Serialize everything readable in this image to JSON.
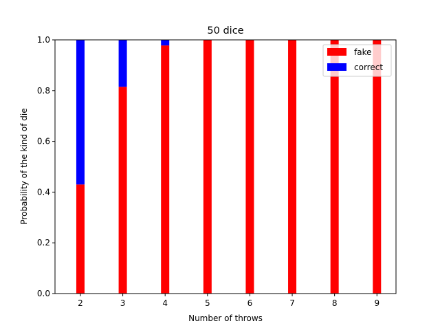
{
  "chart_data": {
    "type": "bar",
    "stacked": true,
    "title": "50 dice",
    "xlabel": "Number of throws",
    "ylabel": "Probability of the kind of die",
    "categories": [
      2,
      3,
      4,
      5,
      6,
      7,
      8,
      9
    ],
    "series": [
      {
        "name": "fake",
        "color": "#ff0000",
        "values": [
          0.43,
          0.815,
          0.978,
          1.0,
          1.0,
          1.0,
          1.0,
          1.0
        ]
      },
      {
        "name": "correct",
        "color": "#0000ff",
        "values": [
          0.57,
          0.185,
          0.022,
          0.0,
          0.0,
          0.0,
          0.0,
          0.0
        ]
      }
    ],
    "ylim": [
      0,
      1.0
    ],
    "xlim": [
      1.4,
      9.45
    ],
    "yticks": [
      "0.0",
      "0.2",
      "0.4",
      "0.6",
      "0.8",
      "1.0"
    ],
    "xticks": [
      "2",
      "3",
      "4",
      "5",
      "6",
      "7",
      "8",
      "9"
    ],
    "legend_position": "top-right",
    "grid": false
  }
}
